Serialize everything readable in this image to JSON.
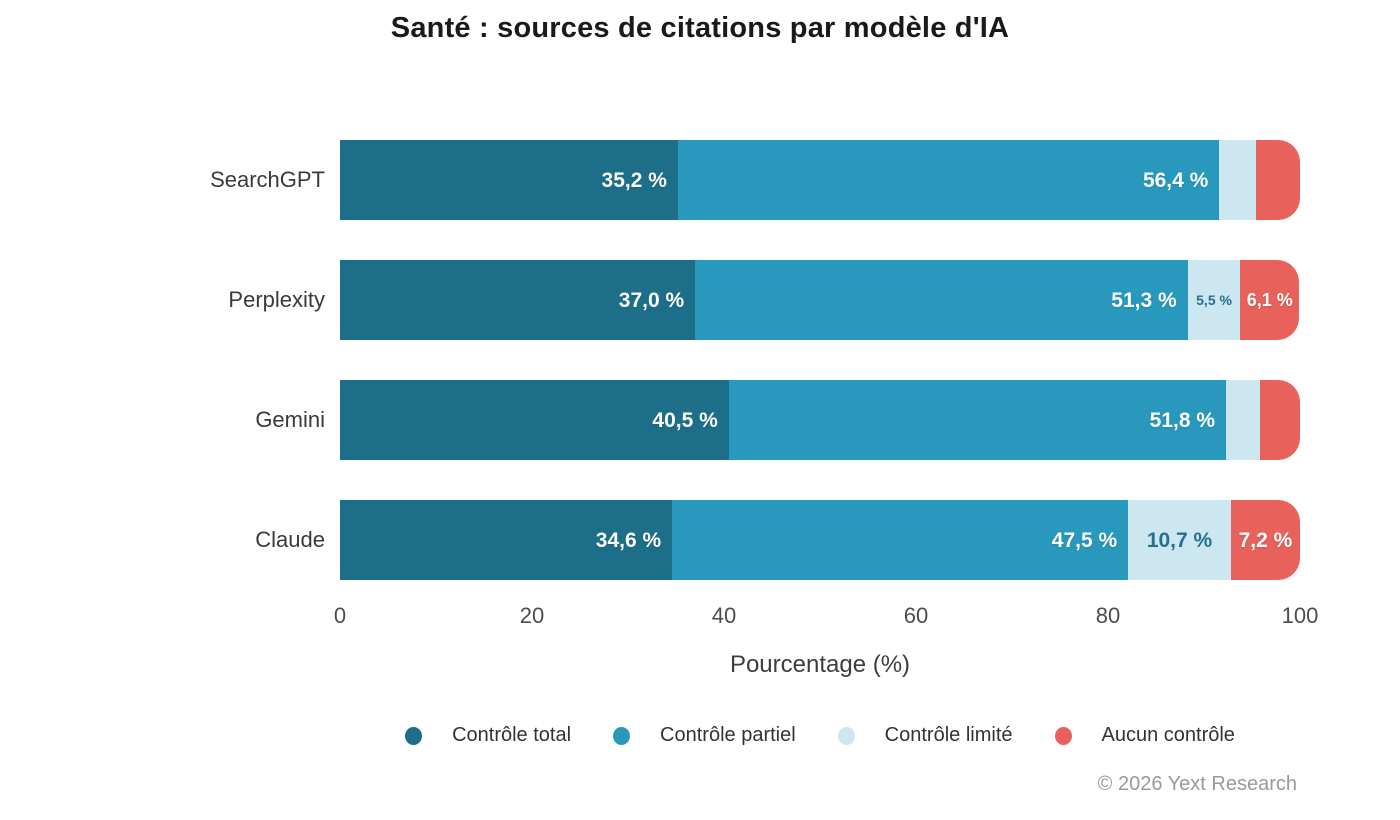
{
  "title": "Santé : sources de citations par modèle d'IA",
  "chart_data": {
    "type": "bar",
    "orientation": "horizontal",
    "stacked": true,
    "title": "Santé : sources de citations par modèle d'IA",
    "categories": [
      "SearchGPT",
      "Perplexity",
      "Gemini",
      "Claude"
    ],
    "series": [
      {
        "name": "Contrôle total",
        "color": "#1d6f89",
        "values": [
          35.2,
          37.0,
          40.5,
          34.6
        ],
        "labels": [
          "35,2 %",
          "37,0 %",
          "40,5 %",
          "34,6 %"
        ],
        "label_mode": "right",
        "label_color": "#ffffff",
        "label_sizes": [
          21,
          21,
          21,
          21
        ]
      },
      {
        "name": "Contrôle partiel",
        "color": "#2899bd",
        "values": [
          56.4,
          51.3,
          51.8,
          47.5
        ],
        "labels": [
          "56,4 %",
          "51,3 %",
          "51,8 %",
          "47,5 %"
        ],
        "label_mode": "right",
        "label_color": "#ffffff",
        "label_sizes": [
          21,
          21,
          21,
          21
        ]
      },
      {
        "name": "Contrôle limité",
        "color": "#cde7f0",
        "values": [
          3.8,
          5.5,
          3.5,
          10.7
        ],
        "labels": [
          "",
          "5,5 %",
          "",
          "10,7 %"
        ],
        "label_mode": "center",
        "label_color": "#26708e",
        "label_sizes": [
          0,
          14,
          0,
          21
        ]
      },
      {
        "name": "Aucun contrôle",
        "color": "#e8615a",
        "values": [
          4.6,
          6.1,
          4.2,
          7.2
        ],
        "labels": [
          "",
          "6,1 %",
          "",
          "7,2 %"
        ],
        "label_mode": "center",
        "label_color": "#ffffff",
        "label_sizes": [
          0,
          18,
          0,
          21
        ]
      }
    ],
    "xlabel": "Pourcentage (%)",
    "x_ticks": [
      0,
      20,
      40,
      60,
      80,
      100
    ],
    "xlim": [
      0,
      100
    ],
    "grid": false,
    "legend_position": "bottom"
  },
  "footer": {
    "credit": "© 2026 Yext Research"
  }
}
